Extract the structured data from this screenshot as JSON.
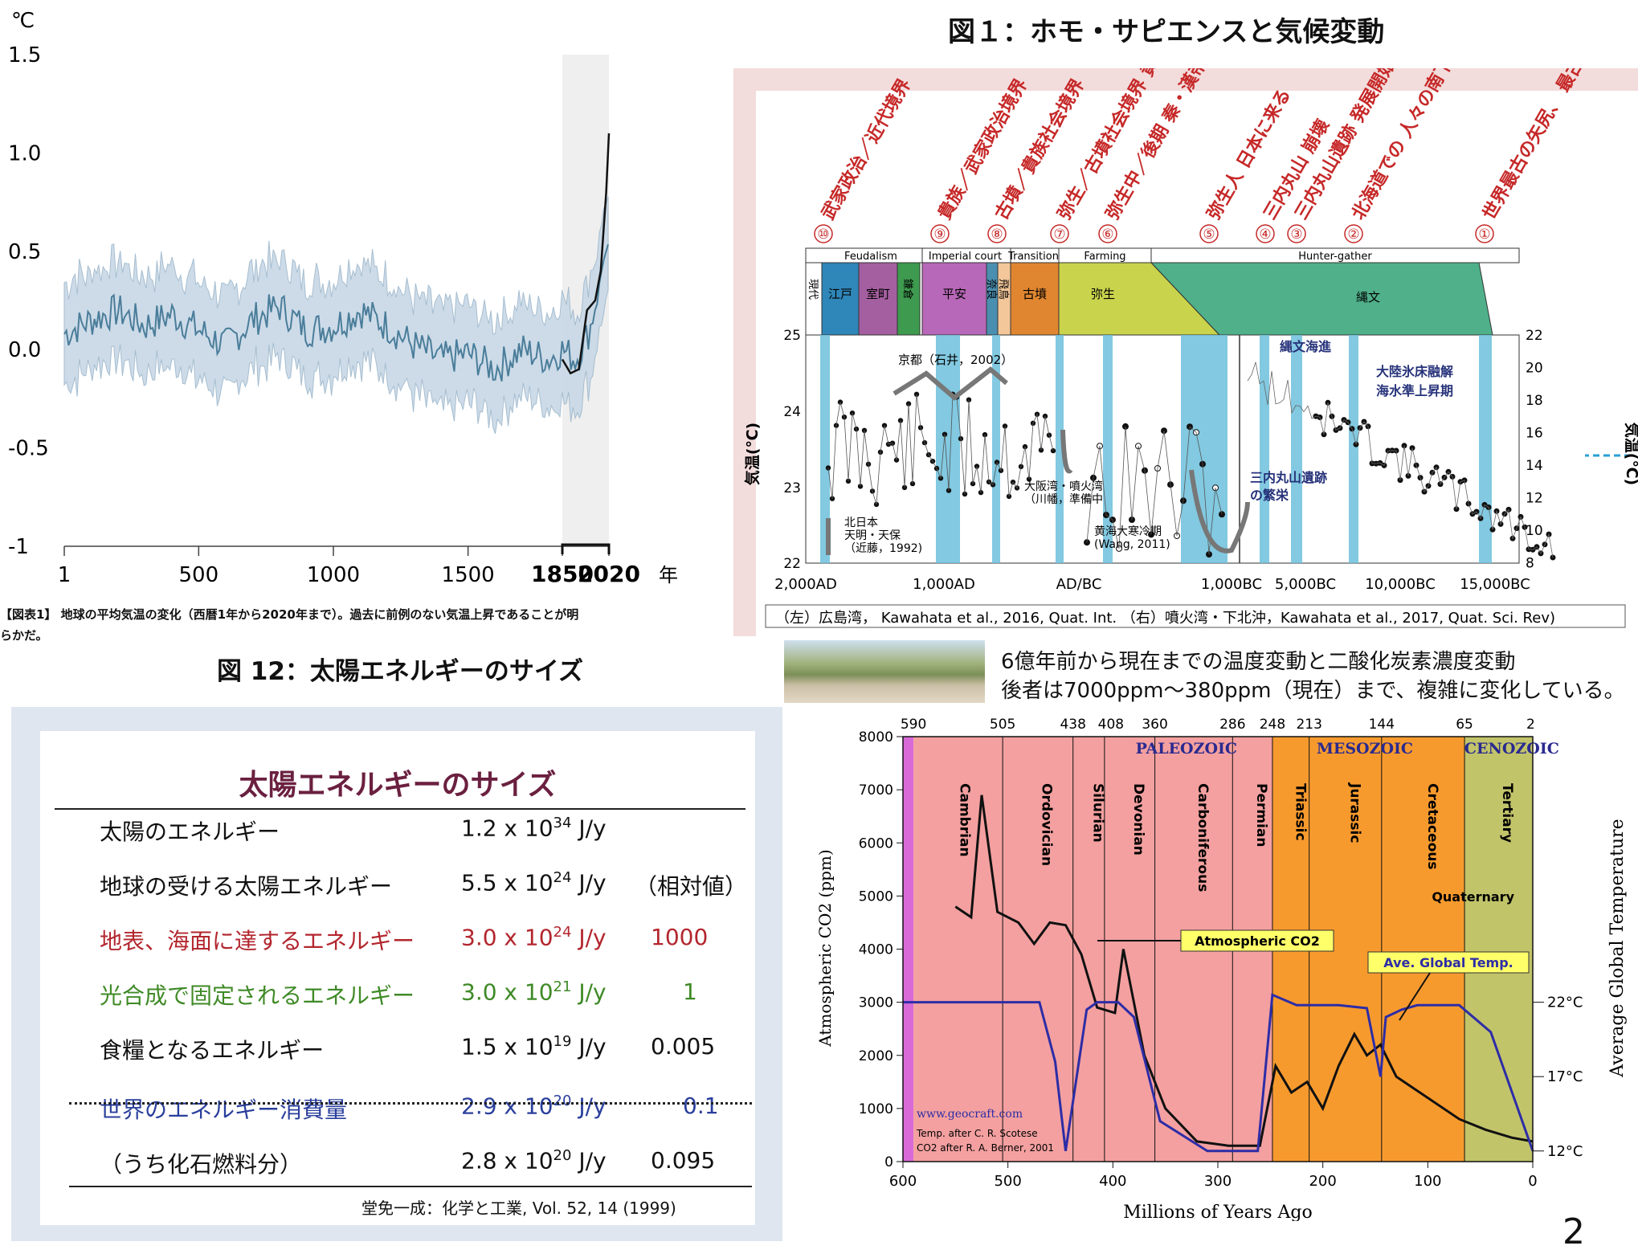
{
  "figure1_title": "図１：ホモ・サピエンスと気候変動",
  "figure12_title": "図 12：太陽エネルギーのサイズ",
  "page_number": "2",
  "temp_chart": {
    "unit_label": "℃",
    "y_ticks": [
      "1.5",
      "1.0",
      "0.5",
      "0.0",
      "-0.5",
      "-1"
    ],
    "x_ticks": [
      "1",
      "500",
      "1000",
      "1500",
      "1850",
      "2020"
    ],
    "x_unit": "年",
    "caption_line1": "【図表1】 地球の平均気温の変化（西暦1年から2020年まで）。過去に前例のない気温上昇であることが明",
    "caption_line2": "らかだ。"
  },
  "japan_chart": {
    "events": [
      {
        "num": "⑩",
        "text": "武家政治／近代境界"
      },
      {
        "num": "⑨",
        "text": "貴族／武家政治境界"
      },
      {
        "num": "⑧",
        "text": "古墳／貴族社会境界"
      },
      {
        "num": "⑦",
        "text": "弥生／古墳社会境界 黄巾の乱"
      },
      {
        "num": "⑥",
        "text": "弥生中／後期 秦・漢帝国成立"
      },
      {
        "num": "⑤",
        "text": "弥生人 日本に来る"
      },
      {
        "num": "④",
        "text": "三内丸山 崩壊"
      },
      {
        "num": "③",
        "text": "三内丸山遺跡 発展開始"
      },
      {
        "num": "②",
        "text": "北海道での 人々の南下"
      },
      {
        "num": "①",
        "text": "世界最古の矢尻、 最古級の土器"
      }
    ],
    "society": [
      "Feudalism",
      "Imperial court",
      "Transition",
      "Farming",
      "Hunter-gather"
    ],
    "periods": [
      "現代",
      "江戸",
      "室町",
      "鎌倉",
      "平安",
      "奈良",
      "飛鳥",
      "古墳",
      "弥生",
      "縄文"
    ],
    "y_left_ticks": [
      "25",
      "24",
      "23",
      "22"
    ],
    "y_right_ticks": [
      "22",
      "20",
      "18",
      "16",
      "14",
      "12",
      "10",
      "8"
    ],
    "y_label": "気温(℃)",
    "x_ticks": [
      "2,000AD",
      "1,000AD",
      "AD/BC",
      "1,000BC",
      "5,000BC",
      "10,000BC",
      "15,000BC"
    ],
    "annotations": {
      "kyoto": "京都（石井，2002）",
      "north_japan": [
        "北日本",
        "天明・天保",
        "（近藤，1992)"
      ],
      "osaka": [
        "大阪湾・噴火湾",
        "（川幡，準備中"
      ],
      "yellow_sea": [
        "黄海大寒冷期",
        "(Wang, 2011)"
      ],
      "jomon_sea": "縄文海進",
      "sannai": [
        "三内丸山遺跡",
        "の繁栄"
      ],
      "ice": [
        "大陸氷床融解",
        "海水準上昇期"
      ]
    },
    "source": "（左）広島湾， Kawahata et al., 2016, Quat. Int. （右）噴火湾・下北沖，Kawahata et al., 2017, Quat. Sci. Rev)"
  },
  "energy_table": {
    "title": "太陽エネルギーのサイズ",
    "rows": [
      {
        "name": "太陽のエネルギー",
        "mant": "1.2 x 10",
        "exp": "34",
        "unit": " J/y",
        "rel": "",
        "color": "#111111"
      },
      {
        "name": "地球の受ける太陽エネルギー",
        "mant": "5.5 x 10",
        "exp": "24",
        "unit": " J/y",
        "rel": "（相対値）",
        "color": "#111111"
      },
      {
        "name": "地表、海面に達するエネルギー",
        "mant": "3.0 x 10",
        "exp": "24",
        "unit": " J/y",
        "rel": "1000",
        "color": "#b3262e"
      },
      {
        "name": "光合成で固定されるエネルギー",
        "mant": "3.0 x 10",
        "exp": "21",
        "unit": " J/y",
        "rel": "1",
        "color": "#3f8a26"
      },
      {
        "name": "食糧となるエネルギー",
        "mant": "1.5 x 10",
        "exp": "19",
        "unit": " J/y",
        "rel": "0.005",
        "color": "#111111"
      },
      {
        "name": "世界のエネルギー消費量",
        "mant": "2.9 x 10",
        "exp": "20",
        "unit": " J/y",
        "rel": "0.1",
        "color": "#2a3f9c"
      },
      {
        "name": "（うち化石燃料分）",
        "mant": "2.8 x 10",
        "exp": "20",
        "unit": " J/y",
        "rel": "0.095",
        "color": "#111111"
      }
    ],
    "source": "堂免一成：化学と工業, Vol. 52, 14 (1999)"
  },
  "co2_caption": [
    "6億年前から現在までの温度変動と二酸化炭素濃度変動",
    "後者は7000ppm～380ppm（現在）まで、複雑に変化している。"
  ],
  "co2_chart": {
    "top_ticks": [
      "590",
      "505",
      "438",
      "408",
      "360",
      "286",
      "248",
      "213",
      "144",
      "65",
      "2"
    ],
    "eras": [
      "PALEOZOIC",
      "MESOZOIC",
      "CENOZOIC"
    ],
    "periods": [
      "Cambrian",
      "Ordovician",
      "Silurian",
      "Devonian",
      "Carboniferous",
      "Permian",
      "Triassic",
      "Jurassic",
      "Cretaceous",
      "Tertiary"
    ],
    "quaternary": "Quaternary",
    "y_ticks": [
      "8000",
      "7000",
      "6000",
      "5000",
      "4000",
      "3000",
      "2000",
      "1000",
      "0"
    ],
    "x_ticks": [
      "600",
      "500",
      "400",
      "300",
      "200",
      "100",
      "0"
    ],
    "right_ticks": [
      "22°C",
      "17°C",
      "12°C"
    ],
    "y_label": "Atmospheric CO2 (ppm)",
    "x_label": "Millions of Years Ago",
    "right_label": "Average Global Temperature",
    "label_co2": "Atmospheric CO2",
    "label_temp": "Ave. Global Temp.",
    "credit_url": "www.geocraft.com",
    "credit_1": "Temp. after C. R. Scotese",
    "credit_2": "CO2 after R. A. Berner, 2001"
  },
  "chart_data": [
    {
      "type": "line",
      "title": "",
      "ylabel": "℃",
      "xlim": [
        1,
        2020
      ],
      "ylim": [
        -1,
        1.5
      ],
      "series": [
        {
          "x": [
            1,
            100,
            200,
            300,
            400,
            500,
            600,
            700,
            800,
            900,
            1000,
            1100,
            1200,
            1300,
            1400,
            1500,
            1600,
            1700,
            1800,
            1850,
            1900,
            1950,
            1980,
            2000,
            2020
          ],
          "values": [
            0.08,
            0.15,
            0.2,
            0.12,
            0.18,
            0.1,
            0.02,
            0.15,
            0.22,
            0.1,
            0.12,
            0.2,
            0.12,
            0.02,
            -0.05,
            -0.02,
            -0.1,
            0.0,
            -0.05,
            0.0,
            -0.05,
            0.1,
            0.3,
            0.45,
            0.55
          ]
        },
        {
          "x": [
            1850,
            1880,
            1910,
            1940,
            1970,
            1990,
            2000,
            2010,
            2020
          ],
          "values": [
            -0.05,
            -0.12,
            -0.1,
            0.2,
            0.25,
            0.4,
            0.6,
            0.8,
            1.1
          ]
        }
      ]
    },
    {
      "type": "line",
      "title": "",
      "xlabel": "Millions of Years Ago",
      "xlim": [
        600,
        0
      ],
      "ylim": [
        0,
        8000
      ],
      "series": [
        {
          "name": "Atmospheric CO2",
          "x": [
            550,
            535,
            525,
            510,
            490,
            475,
            460,
            445,
            430,
            415,
            398,
            390,
            370,
            350,
            320,
            290,
            260,
            245,
            230,
            215,
            200,
            185,
            170,
            158,
            145,
            130,
            100,
            70,
            45,
            20,
            0
          ],
          "values": [
            4800,
            4600,
            6900,
            4700,
            4500,
            4100,
            4500,
            4450,
            3900,
            2900,
            2800,
            4000,
            2000,
            1000,
            380,
            300,
            300,
            1800,
            1300,
            1500,
            1000,
            1800,
            2400,
            2000,
            2200,
            1600,
            1200,
            800,
            600,
            450,
            380
          ]
        },
        {
          "name": "Ave. Global Temp.",
          "x": [
            600,
            470,
            455,
            445,
            425,
            415,
            395,
            380,
            355,
            310,
            290,
            262,
            248,
            225,
            185,
            158,
            145,
            140,
            125,
            110,
            70,
            40,
            0
          ],
          "values": [
            22,
            22,
            18,
            12,
            21.5,
            22,
            22,
            21,
            14,
            12,
            12,
            12,
            22.5,
            21.8,
            21.8,
            21.6,
            17,
            21,
            21.5,
            21.8,
            21.8,
            20,
            12
          ]
        }
      ]
    }
  ]
}
